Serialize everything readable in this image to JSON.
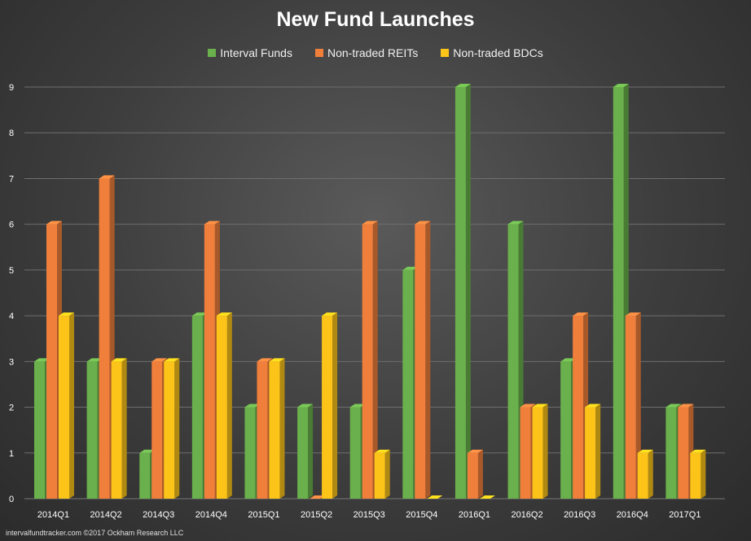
{
  "chart_data": {
    "type": "bar",
    "title": "New Fund Launches",
    "xlabel": "",
    "ylabel": "",
    "ylim": [
      0,
      9
    ],
    "yticks": [
      0,
      1,
      2,
      3,
      4,
      5,
      6,
      7,
      8,
      9
    ],
    "grid": true,
    "legend_position": "top-center",
    "categories": [
      "2014Q1",
      "2014Q2",
      "2014Q3",
      "2014Q4",
      "2015Q1",
      "2015Q2",
      "2015Q3",
      "2015Q4",
      "2016Q1",
      "2016Q2",
      "2016Q3",
      "2016Q4",
      "2017Q1"
    ],
    "series": [
      {
        "name": "Interval Funds",
        "color": "#6ab04c",
        "values": [
          3,
          3,
          1,
          4,
          2,
          2,
          2,
          5,
          9,
          6,
          3,
          9,
          2
        ]
      },
      {
        "name": "Non-traded REITs",
        "color": "#f07f3c",
        "values": [
          6,
          7,
          3,
          6,
          3,
          0,
          6,
          6,
          1,
          2,
          4,
          4,
          2
        ]
      },
      {
        "name": "Non-traded BDCs",
        "color": "#fcc419",
        "values": [
          4,
          3,
          3,
          4,
          3,
          4,
          1,
          0,
          0,
          2,
          2,
          1,
          1
        ]
      }
    ]
  },
  "footer": {
    "text": "intervalfundtracker.com   ©2017 Ockham Research LLC"
  }
}
